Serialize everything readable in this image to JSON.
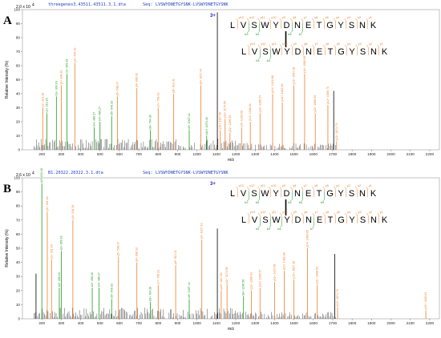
{
  "colors": {
    "b_ion": "#1e9a1e",
    "y_ion": "#f07f2a",
    "plain": "#000000",
    "frame": "#888888",
    "header": "#1f3fbf",
    "charge": "#1a1ad6"
  },
  "chart_data": [
    {
      "type": "bar",
      "panel_label": "A",
      "file": "threegenes3.43511.43511.3.1.dta",
      "seq_label": "Seq:",
      "sequence": "LVSWYDNETGYSNK-LVSWYDNETGYSNK",
      "y_multiplier": "2.0 x 10",
      "y_multiplier_exp": "4",
      "ylabel": "Relative Intensity (%)",
      "xlabel": "m/z",
      "xlim": [
        100,
        2250
      ],
      "ylim": [
        0,
        100
      ],
      "xticks": [
        200,
        300,
        400,
        500,
        600,
        700,
        800,
        900,
        1000,
        1100,
        1200,
        1300,
        1400,
        1500,
        1600,
        1700,
        1800,
        1900,
        2000,
        2100,
        2200
      ],
      "yticks": [
        0,
        10,
        20,
        30,
        40,
        50,
        60,
        70,
        80,
        90,
        100
      ],
      "peaks": [
        {
          "mz": 205,
          "i": 30,
          "c": "y",
          "label": "y1+ 261.16"
        },
        {
          "mz": 226,
          "i": 26,
          "c": "b",
          "label": "b2+ 213.16"
        },
        {
          "mz": 275,
          "i": 38,
          "c": "b",
          "label": "b3+ 300.19"
        },
        {
          "mz": 300,
          "i": 46,
          "c": "y",
          "label": "y2+ 348.19"
        },
        {
          "mz": 330,
          "i": 54,
          "c": "b",
          "label": "c3+ 359.19"
        },
        {
          "mz": 370,
          "i": 62,
          "c": "y",
          "label": "y3+ 435.19"
        },
        {
          "mz": 470,
          "i": 16,
          "c": "b",
          "label": "b4+ 486.27"
        },
        {
          "mz": 500,
          "i": 20,
          "c": "b",
          "label": "b4+ 486.27"
        },
        {
          "mz": 560,
          "i": 24,
          "c": "b",
          "label": "b5+ 649.33"
        },
        {
          "mz": 590,
          "i": 38,
          "c": "y",
          "label": "y5+ 598.27"
        },
        {
          "mz": 690,
          "i": 44,
          "c": "y",
          "label": "y6+ 686.32"
        },
        {
          "mz": 760,
          "i": 14,
          "c": "b",
          "label": "b6+ 764.36"
        },
        {
          "mz": 800,
          "i": 30,
          "c": "y",
          "label": "y7+ 799.31"
        },
        {
          "mz": 880,
          "i": 40,
          "c": "y",
          "label": "y8+ 913.41"
        },
        {
          "mz": 960,
          "i": 14,
          "c": "b",
          "label": "b9+ 1007.44"
        },
        {
          "mz": 1020,
          "i": 46,
          "c": "y",
          "label": "y9+ 1027.43"
        },
        {
          "mz": 1050,
          "i": 10,
          "c": "b",
          "label": "b10+ 1070.48"
        },
        {
          "mz": 1105,
          "i": 98,
          "c": "k",
          "label": ""
        },
        {
          "mz": 1120,
          "i": 14,
          "c": "y",
          "label": "y10+ 1117.50"
        },
        {
          "mz": 1145,
          "i": 22,
          "c": "y",
          "label": "y11+ 1170.55"
        },
        {
          "mz": 1170,
          "i": 12,
          "c": "y",
          "label": "y11+ 1195.52"
        },
        {
          "mz": 1230,
          "i": 16,
          "c": "y",
          "label": "y5+ 1236.56"
        },
        {
          "mz": 1275,
          "i": 20,
          "c": "y",
          "label": "y12+ 1286.61"
        },
        {
          "mz": 1325,
          "i": 26,
          "c": "y",
          "label": "y13+ 1350.57"
        },
        {
          "mz": 1390,
          "i": 40,
          "c": "y",
          "label": "y14+ 1422.66"
        },
        {
          "mz": 1440,
          "i": 34,
          "c": "y",
          "label": "y13+ 1482.69"
        },
        {
          "mz": 1500,
          "i": 46,
          "c": "y",
          "label": "y13+ 1507.18"
        },
        {
          "mz": 1555,
          "i": 54,
          "c": "y",
          "label": "y14+ 1560.65"
        },
        {
          "mz": 1610,
          "i": 26,
          "c": "y",
          "label": "y11+ 1608.53"
        },
        {
          "mz": 1675,
          "i": 32,
          "c": "y",
          "label": "y12+ 1669.73"
        },
        {
          "mz": 1705,
          "i": 42,
          "c": "k",
          "label": ""
        },
        {
          "mz": 1720,
          "i": 6,
          "c": "y",
          "label": "y13+ 1874.73"
        }
      ],
      "seq_top": [
        "L",
        "V",
        "S",
        "W",
        "Y",
        "D",
        "N",
        "E",
        "T",
        "G",
        "Y",
        "S",
        "N",
        "K"
      ],
      "seq_bottom": [
        "L",
        "V",
        "S",
        "W",
        "Y",
        "D",
        "N",
        "E",
        "T",
        "G",
        "Y",
        "S",
        "N",
        "K"
      ],
      "ions_top_y": [
        "y13",
        "y12",
        "y11",
        "y10",
        "y9",
        "y8",
        "y7",
        "y6",
        "y5",
        "y4",
        "y3",
        "y2",
        "y1"
      ],
      "ions_top_b": [
        "b3",
        "b4",
        "b6",
        "b7"
      ],
      "ions_bottom_y": [
        "y13",
        "y12",
        "y11",
        "y10",
        "y9",
        "y8",
        "y7",
        "y6",
        "y5",
        "y4",
        "y3",
        "y2",
        "y1"
      ],
      "ions_bottom_b": [
        "b3",
        "b4"
      ],
      "charge": "3+"
    },
    {
      "type": "bar",
      "panel_label": "B",
      "file": "B1.20322.20322.3.1.dta",
      "seq_label": "Seq:",
      "sequence": "LVSWYDNETGYSNK-LVSWYDNETGYSNK",
      "y_multiplier": "2.6 x 10",
      "y_multiplier_exp": "4",
      "ylabel": "Relative Intensity (%)",
      "xlabel": "m/z",
      "xlim": [
        100,
        2250
      ],
      "ylim": [
        0,
        100
      ],
      "xticks": [
        200,
        300,
        400,
        500,
        600,
        700,
        800,
        900,
        1000,
        1100,
        1200,
        1300,
        1400,
        1500,
        1600,
        1700,
        1800,
        1900,
        2000,
        2100,
        2200
      ],
      "yticks": [
        0,
        10,
        20,
        30,
        40,
        50,
        60,
        70,
        80,
        90,
        100
      ],
      "peaks": [
        {
          "mz": 170,
          "i": 32,
          "c": "k",
          "label": ""
        },
        {
          "mz": 200,
          "i": 96,
          "c": "b",
          "label": "b2+ 213.16"
        },
        {
          "mz": 228,
          "i": 76,
          "c": "y",
          "label": "y1+ 261.16"
        },
        {
          "mz": 250,
          "i": 42,
          "c": "y",
          "label": "y2+ 261.16"
        },
        {
          "mz": 290,
          "i": 22,
          "c": "b",
          "label": "b3+ 300.19"
        },
        {
          "mz": 300,
          "i": 48,
          "c": "b",
          "label": "a3+ 359.19"
        },
        {
          "mz": 360,
          "i": 70,
          "c": "y",
          "label": "y3+ 348.19"
        },
        {
          "mz": 460,
          "i": 22,
          "c": "b",
          "label": "a4+ 458.26"
        },
        {
          "mz": 495,
          "i": 22,
          "c": "b",
          "label": "b4+ 486.27"
        },
        {
          "mz": 560,
          "i": 14,
          "c": "b",
          "label": "b5+ 649.33"
        },
        {
          "mz": 595,
          "i": 44,
          "c": "y",
          "label": "y5+ 598.27"
        },
        {
          "mz": 690,
          "i": 40,
          "c": "y",
          "label": "y6+ 686.32"
        },
        {
          "mz": 760,
          "i": 12,
          "c": "b",
          "label": "b6+ 764.36"
        },
        {
          "mz": 800,
          "i": 24,
          "c": "y",
          "label": "y7+ 799.31"
        },
        {
          "mz": 890,
          "i": 38,
          "c": "y",
          "label": "y8+ 913.41"
        },
        {
          "mz": 960,
          "i": 14,
          "c": "b",
          "label": "b9+ 1007.44"
        },
        {
          "mz": 1025,
          "i": 56,
          "c": "y",
          "label": "y9+ 1027.43"
        },
        {
          "mz": 1105,
          "i": 64,
          "c": "k",
          "label": ""
        },
        {
          "mz": 1125,
          "i": 20,
          "c": "y",
          "label": "y10+ 1117.50"
        },
        {
          "mz": 1155,
          "i": 24,
          "c": "y",
          "label": "y11+ 1170.55"
        },
        {
          "mz": 1240,
          "i": 16,
          "c": "b",
          "label": "b8+ 1236.56"
        },
        {
          "mz": 1280,
          "i": 20,
          "c": "y",
          "label": "y12+ 1286.61"
        },
        {
          "mz": 1325,
          "i": 22,
          "c": "y",
          "label": "y13+ 1350.57"
        },
        {
          "mz": 1400,
          "i": 26,
          "c": "y",
          "label": "y11+ 1422.66"
        },
        {
          "mz": 1450,
          "i": 34,
          "c": "y",
          "label": "y12+ 1482.69"
        },
        {
          "mz": 1500,
          "i": 28,
          "c": "y",
          "label": "y13+ 1507.18"
        },
        {
          "mz": 1570,
          "i": 50,
          "c": "y",
          "label": "y14+ 1560.65"
        },
        {
          "mz": 1620,
          "i": 24,
          "c": "y",
          "label": "y11+ 1608.53"
        },
        {
          "mz": 1710,
          "i": 46,
          "c": "k",
          "label": ""
        },
        {
          "mz": 1725,
          "i": 8,
          "c": "y",
          "label": "y13+ 1874.73"
        },
        {
          "mz": 2180,
          "i": 6,
          "c": "y",
          "label": "y13+ 2180.91"
        }
      ],
      "seq_top": [
        "L",
        "V",
        "S",
        "W",
        "Y",
        "D",
        "N",
        "E",
        "T",
        "G",
        "Y",
        "S",
        "N",
        "K"
      ],
      "seq_bottom": [
        "L",
        "V",
        "S",
        "W",
        "Y",
        "D",
        "N",
        "E",
        "T",
        "G",
        "Y",
        "S",
        "N",
        "K"
      ],
      "ions_top_y": [
        "y13",
        "y12",
        "y11",
        "y10",
        "y9",
        "y8",
        "y7",
        "y6",
        "y5",
        "y4",
        "y3",
        "y2",
        "y1"
      ],
      "ions_top_b": [
        "b2",
        "b3",
        "b5",
        "b6",
        "b9"
      ],
      "ions_bottom_y": [
        "y13",
        "y12",
        "y11",
        "y10",
        "y9",
        "y8",
        "y7",
        "y6",
        "y5",
        "y4",
        "y3",
        "y2",
        "y1"
      ],
      "ions_bottom_b": [
        "b2",
        "b3",
        "b4",
        "b7"
      ],
      "charge": "3+"
    }
  ]
}
